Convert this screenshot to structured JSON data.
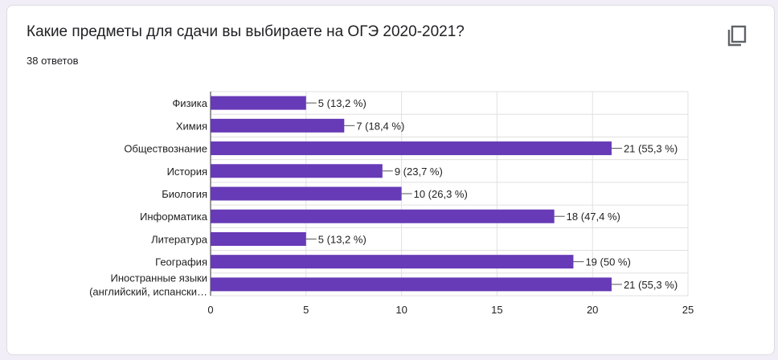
{
  "question": {
    "title": "Какие предметы для сдачи вы выбираете на ОГЭ 2020-2021?",
    "responses": "38 ответов",
    "copy_icon": "copy-icon"
  },
  "colors": {
    "bar": "#673ab7",
    "grid": "#e0e0e0",
    "axis": "#333333"
  },
  "chart_data": {
    "type": "bar",
    "orientation": "horizontal",
    "title": "Какие предметы для сдачи вы выбираете на ОГЭ 2020-2021?",
    "xlabel": "",
    "ylabel": "",
    "xlim": [
      0,
      25
    ],
    "ticks": [
      0,
      5,
      10,
      15,
      20,
      25
    ],
    "tick_labels": [
      "0",
      "5",
      "10",
      "15",
      "20",
      "25"
    ],
    "categories": [
      [
        "Физика"
      ],
      [
        "Химия"
      ],
      [
        "Обществознание"
      ],
      [
        "История"
      ],
      [
        "Биология"
      ],
      [
        "Информатика"
      ],
      [
        "Литература"
      ],
      [
        "География"
      ],
      [
        "Иностранные языки",
        "(английский, испански…"
      ]
    ],
    "values": [
      5,
      7,
      21,
      9,
      10,
      18,
      5,
      19,
      21
    ],
    "data_labels": [
      "5 (13,2 %)",
      "7 (18,4 %)",
      "21 (55,3 %)",
      "9 (23,7 %)",
      "10 (26,3 %)",
      "18 (47,4 %)",
      "5 (13,2 %)",
      "19 (50 %)",
      "21 (55,3 %)"
    ],
    "grid": true
  }
}
